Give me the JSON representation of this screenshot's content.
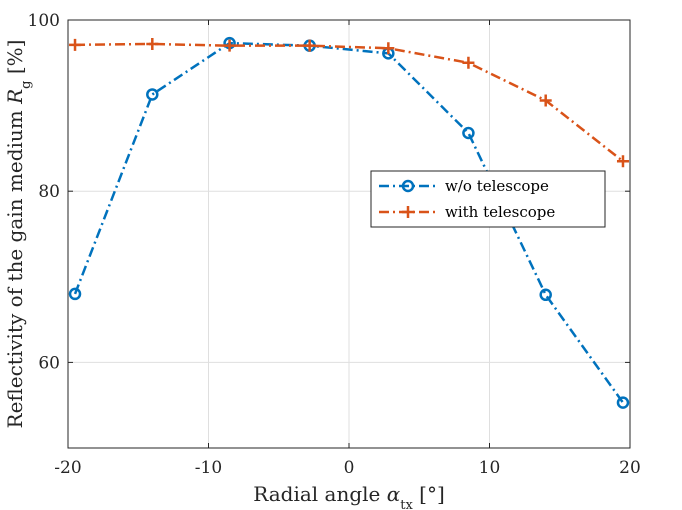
{
  "chart_data": {
    "type": "line",
    "xlabel": "Radial angle α_tx [°]",
    "ylabel": "Reflectivity of the gain medium R_g [%]",
    "xlim": [
      -20,
      20
    ],
    "ylim": [
      50,
      100
    ],
    "xticks": [
      -20,
      -10,
      0,
      10,
      20
    ],
    "yticks": [
      60,
      80,
      100
    ],
    "grid": true,
    "legend_position": "right",
    "series": [
      {
        "name": "w/o telescope",
        "color": "#0072BD",
        "marker": "circle",
        "line_style": "dash-dot",
        "x": [
          -19.5,
          -14,
          -8.5,
          -2.8,
          2.8,
          8.5,
          14,
          19.5
        ],
        "y": [
          68,
          91.3,
          97.3,
          97,
          96.1,
          86.8,
          67.9,
          55.3
        ]
      },
      {
        "name": "with telescope",
        "color": "#D95319",
        "marker": "plus",
        "line_style": "dash-dot",
        "x": [
          -19.5,
          -14,
          -8.5,
          -2.8,
          2.8,
          8.5,
          14,
          19.5
        ],
        "y": [
          97.1,
          97.2,
          97,
          97,
          96.7,
          95,
          90.6,
          83.5
        ]
      }
    ]
  }
}
